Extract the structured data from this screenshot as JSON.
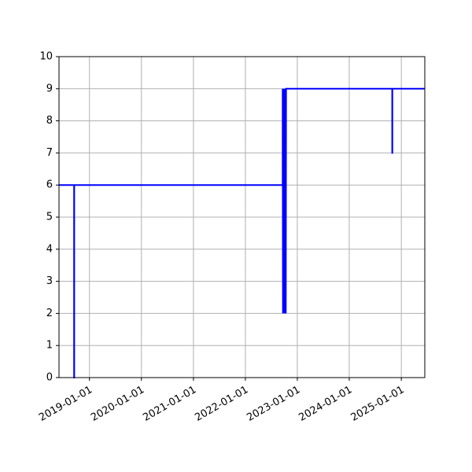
{
  "chart_data": {
    "type": "line",
    "title": "",
    "xlabel": "",
    "ylabel": "",
    "x_axis_type": "date",
    "xlim": [
      "2018-06-01",
      "2025-06-15"
    ],
    "ylim": [
      0,
      10
    ],
    "grid": true,
    "legend": "none",
    "line_color": "#0000ff",
    "grid_color": "#b0b0b0",
    "x_ticks": [
      "2019-01-01",
      "2020-01-01",
      "2021-01-01",
      "2022-01-01",
      "2023-01-01",
      "2024-01-01",
      "2025-01-01"
    ],
    "y_ticks": [
      "0",
      "1",
      "2",
      "3",
      "4",
      "5",
      "6",
      "7",
      "8",
      "9",
      "10"
    ],
    "series": [
      {
        "x": [
          "2018-06-01",
          "2018-09-15",
          "2018-09-15",
          "2018-09-16",
          "2018-09-16",
          "2022-09-20",
          "2022-09-20",
          "2022-09-22",
          "2022-09-24",
          "2022-09-26",
          "2022-09-28",
          "2022-09-30",
          "2022-10-02",
          "2022-10-04",
          "2022-10-06",
          "2022-10-08",
          "2022-10-10",
          "2022-10-12",
          "2022-10-14",
          "2022-10-16",
          "2024-10-29",
          "2024-10-29",
          "2024-10-30",
          "2024-10-30",
          "2025-06-15"
        ],
        "y": [
          6,
          6,
          0,
          0,
          6,
          6,
          9,
          2,
          9,
          2,
          9,
          2,
          9,
          2,
          9,
          2,
          9,
          2,
          9,
          9,
          9,
          7,
          7,
          9,
          9
        ]
      }
    ]
  }
}
